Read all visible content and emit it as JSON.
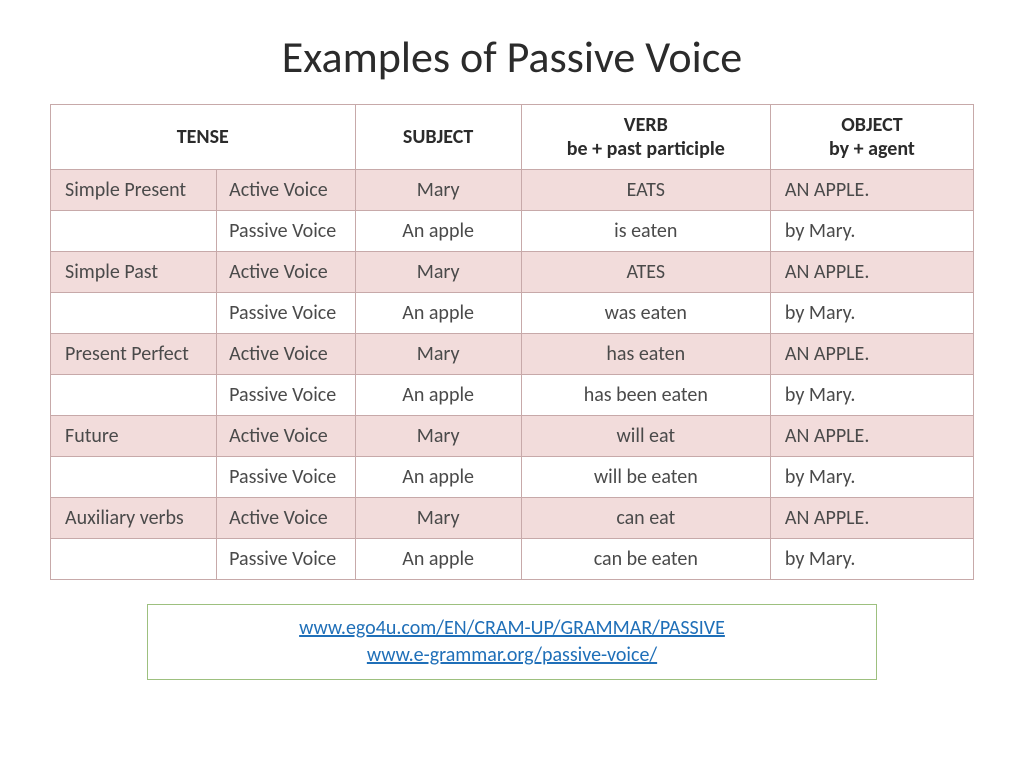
{
  "title": "Examples of Passive Voice",
  "headers": {
    "tense": "TENSE",
    "subject": "SUBJECT",
    "verb_line1": "VERB",
    "verb_line2": "be + past participle",
    "object_line1": "OBJECT",
    "object_line2": "by + agent"
  },
  "rows": [
    {
      "tense": "Simple Present",
      "voice": "Active Voice",
      "subject": "Mary",
      "verb": "EATS",
      "object": "AN APPLE.",
      "shaded": true
    },
    {
      "tense": "",
      "voice": "Passive Voice",
      "subject": "An apple",
      "verb": "is eaten",
      "object": "by Mary.",
      "shaded": false
    },
    {
      "tense": "Simple Past",
      "voice": "Active Voice",
      "subject": "Mary",
      "verb": "ATES",
      "object": "AN APPLE.",
      "shaded": true
    },
    {
      "tense": "",
      "voice": "Passive Voice",
      "subject": "An apple",
      "verb": "was eaten",
      "object": "by Mary.",
      "shaded": false
    },
    {
      "tense": "Present Perfect",
      "voice": "Active Voice",
      "subject": "Mary",
      "verb": "has eaten",
      "object": "AN APPLE.",
      "shaded": true
    },
    {
      "tense": "",
      "voice": "Passive Voice",
      "subject": "An apple",
      "verb": "has been eaten",
      "object": "by Mary.",
      "shaded": false
    },
    {
      "tense": "Future",
      "voice": "Active Voice",
      "subject": "Mary",
      "verb": "will eat",
      "object": "AN APPLE.",
      "shaded": true
    },
    {
      "tense": "",
      "voice": "Passive Voice",
      "subject": "An apple",
      "verb": "will be eaten",
      "object": "by Mary.",
      "shaded": false
    },
    {
      "tense": "Auxiliary verbs",
      "voice": "Active Voice",
      "subject": "Mary",
      "verb": "can eat",
      "object": "AN APPLE.",
      "shaded": true
    },
    {
      "tense": "",
      "voice": "Passive Voice",
      "subject": "An apple",
      "verb": "can be eaten",
      "object": "by Mary.",
      "shaded": false
    }
  ],
  "links": {
    "url1": "www.ego4u.com/EN/CRAM-UP/GRAMMAR/PASSIVE",
    "url2": "www.e-grammar.org/passive-voice/"
  },
  "style": {
    "shaded_bg": "#f2dcdb",
    "plain_bg": "#ffffff",
    "border_color": "#c7a9a9",
    "linkbox_border": "#9dc07f",
    "link_color": "#1f6fb8",
    "title_color": "#2b2b2b",
    "text_color": "#4a4a4a",
    "title_fontsize": 44,
    "cell_fontsize": 20
  }
}
